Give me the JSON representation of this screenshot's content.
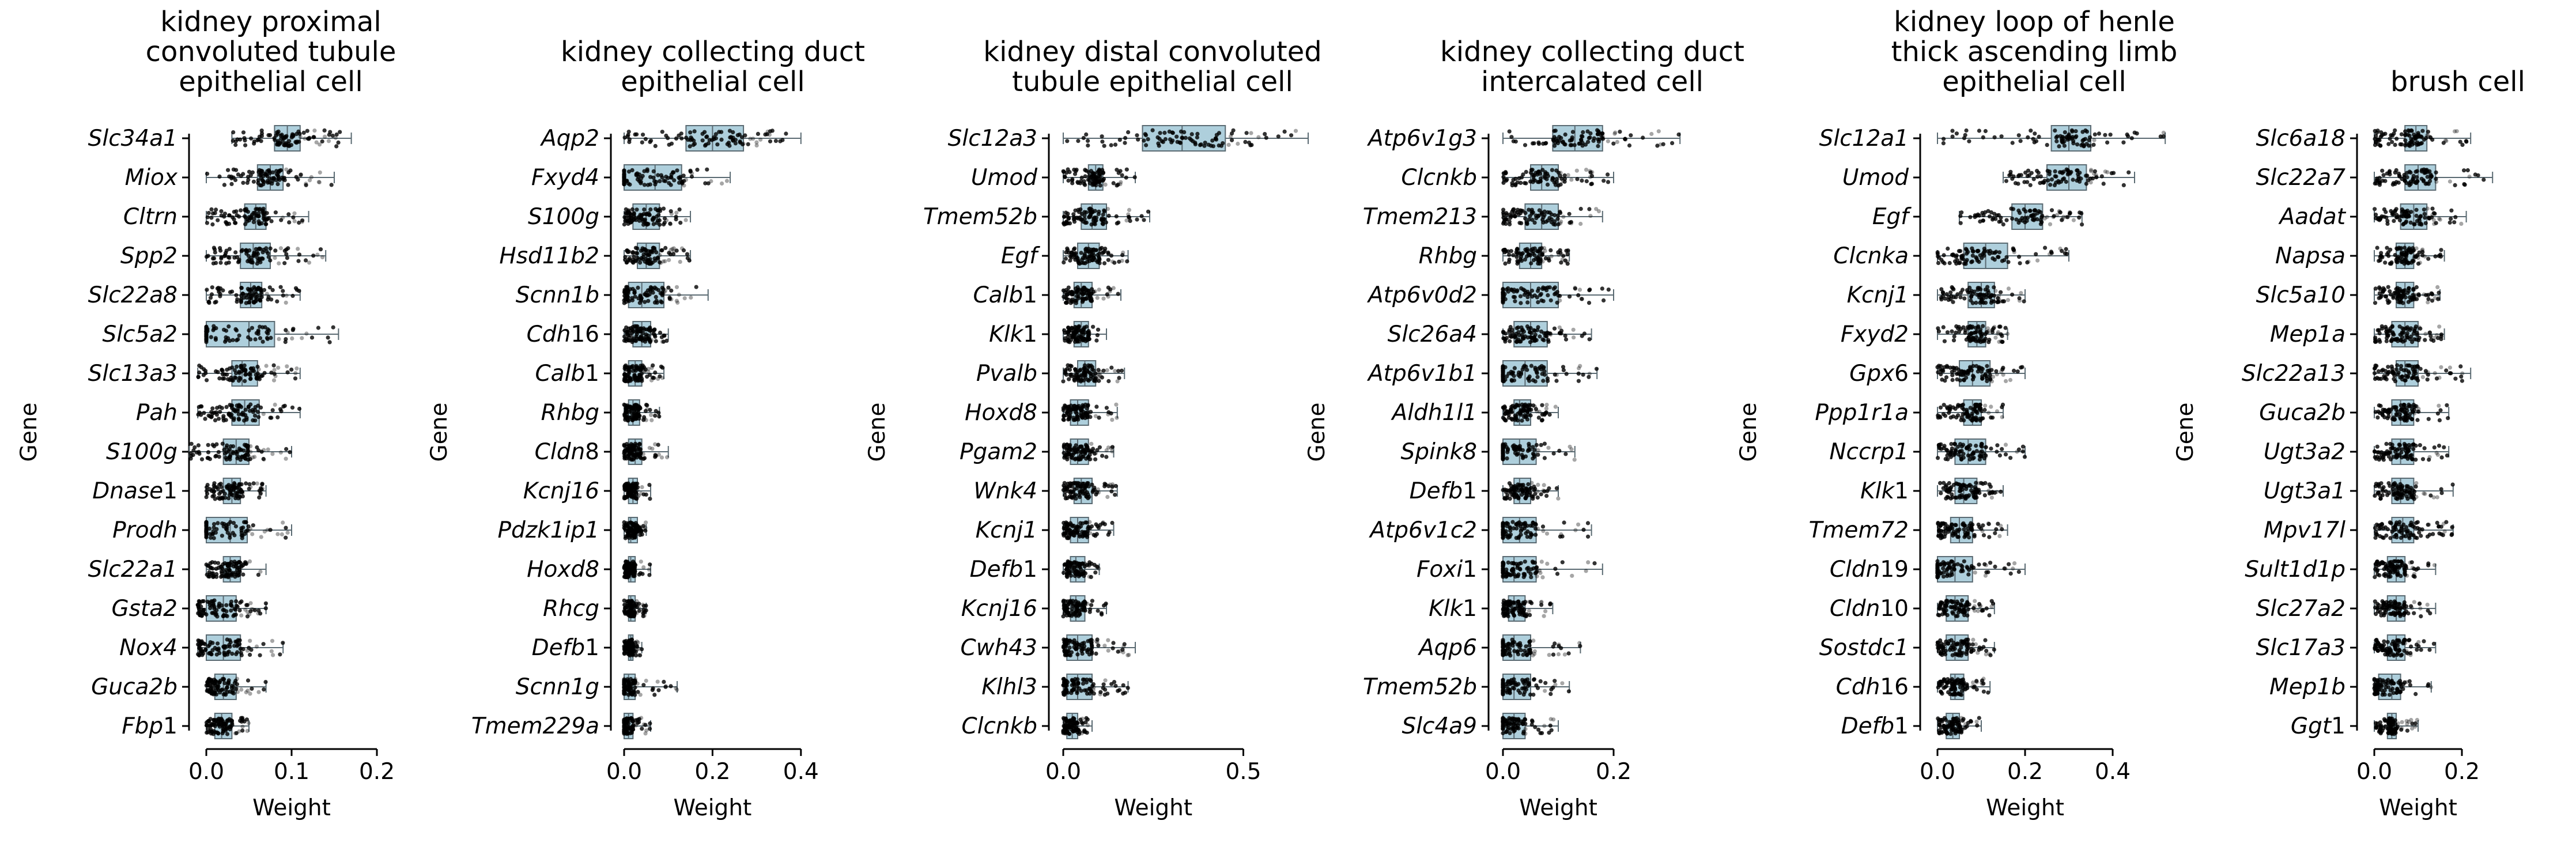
{
  "figure": {
    "y_axis_label": "Gene",
    "x_axis_label": "Weight"
  },
  "chart_data": [
    {
      "type": "box",
      "title": "kidney proximal convoluted tubule epithelial cell",
      "xlabel": "Weight",
      "ylabel": "Gene",
      "xlim": [
        -0.03,
        0.2
      ],
      "xticks": [
        0.0,
        0.1,
        0.2
      ],
      "xtick_labels": [
        "0.0",
        "0.1",
        "0.2"
      ],
      "grid": false,
      "genes": [
        "Slc34a1",
        "Miox",
        "Cltrn",
        "Spp2",
        "Slc22a8",
        "Slc5a2",
        "Slc13a3",
        "Pah",
        "S100g",
        "Dnase1",
        "Prodh",
        "Slc22a1",
        "Gsta2",
        "Nox4",
        "Guca2b",
        "Fbp1"
      ],
      "boxes": [
        {
          "q1": 0.08,
          "median": 0.095,
          "q3": 0.11,
          "whisker_low": 0.03,
          "whisker_high": 0.17
        },
        {
          "q1": 0.06,
          "median": 0.075,
          "q3": 0.09,
          "whisker_low": 0.0,
          "whisker_high": 0.15
        },
        {
          "q1": 0.045,
          "median": 0.058,
          "q3": 0.07,
          "whisker_low": 0.0,
          "whisker_high": 0.12
        },
        {
          "q1": 0.04,
          "median": 0.055,
          "q3": 0.075,
          "whisker_low": 0.0,
          "whisker_high": 0.14
        },
        {
          "q1": 0.04,
          "median": 0.052,
          "q3": 0.065,
          "whisker_low": 0.0,
          "whisker_high": 0.11
        },
        {
          "q1": 0.0,
          "median": 0.05,
          "q3": 0.08,
          "whisker_low": 0.0,
          "whisker_high": 0.155
        },
        {
          "q1": 0.03,
          "median": 0.042,
          "q3": 0.06,
          "whisker_low": -0.01,
          "whisker_high": 0.11
        },
        {
          "q1": 0.03,
          "median": 0.045,
          "q3": 0.062,
          "whisker_low": -0.01,
          "whisker_high": 0.11
        },
        {
          "q1": 0.02,
          "median": 0.035,
          "q3": 0.05,
          "whisker_low": -0.02,
          "whisker_high": 0.1
        },
        {
          "q1": 0.02,
          "median": 0.03,
          "q3": 0.04,
          "whisker_low": 0.0,
          "whisker_high": 0.07
        },
        {
          "q1": 0.0,
          "median": 0.028,
          "q3": 0.048,
          "whisker_low": 0.0,
          "whisker_high": 0.1
        },
        {
          "q1": 0.02,
          "median": 0.028,
          "q3": 0.04,
          "whisker_low": 0.0,
          "whisker_high": 0.07
        },
        {
          "q1": 0.0,
          "median": 0.02,
          "q3": 0.035,
          "whisker_low": -0.01,
          "whisker_high": 0.07
        },
        {
          "q1": 0.0,
          "median": 0.02,
          "q3": 0.04,
          "whisker_low": -0.01,
          "whisker_high": 0.09
        },
        {
          "q1": 0.01,
          "median": 0.02,
          "q3": 0.035,
          "whisker_low": 0.0,
          "whisker_high": 0.07
        },
        {
          "q1": 0.01,
          "median": 0.018,
          "q3": 0.03,
          "whisker_low": 0.0,
          "whisker_high": 0.05
        }
      ]
    },
    {
      "type": "box",
      "title": "kidney collecting duct epithelial cell",
      "xlabel": "Weight",
      "ylabel": "Gene",
      "xlim": [
        -0.01,
        0.4
      ],
      "xticks": [
        0.0,
        0.2,
        0.4
      ],
      "xtick_labels": [
        "0.0",
        "0.2",
        "0.4"
      ],
      "grid": false,
      "genes": [
        "Aqp2",
        "Fxyd4",
        "S100g",
        "Hsd11b2",
        "Scnn1b",
        "Cdh16",
        "Calb1",
        "Rhbg",
        "Cldn8",
        "Kcnj16",
        "Pdzk1ip1",
        "Hoxd8",
        "Rhcg",
        "Defb1",
        "Scnn1g",
        "Tmem229a"
      ],
      "boxes": [
        {
          "q1": 0.14,
          "median": 0.2,
          "q3": 0.27,
          "whisker_low": 0.0,
          "whisker_high": 0.4
        },
        {
          "q1": 0.0,
          "median": 0.07,
          "q3": 0.13,
          "whisker_low": 0.0,
          "whisker_high": 0.24
        },
        {
          "q1": 0.02,
          "median": 0.05,
          "q3": 0.08,
          "whisker_low": 0.0,
          "whisker_high": 0.15
        },
        {
          "q1": 0.03,
          "median": 0.05,
          "q3": 0.08,
          "whisker_low": 0.0,
          "whisker_high": 0.15
        },
        {
          "q1": 0.01,
          "median": 0.04,
          "q3": 0.09,
          "whisker_low": 0.0,
          "whisker_high": 0.19
        },
        {
          "q1": 0.02,
          "median": 0.04,
          "q3": 0.06,
          "whisker_low": 0.0,
          "whisker_high": 0.1
        },
        {
          "q1": 0.01,
          "median": 0.025,
          "q3": 0.04,
          "whisker_low": 0.0,
          "whisker_high": 0.09
        },
        {
          "q1": 0.01,
          "median": 0.02,
          "q3": 0.035,
          "whisker_low": 0.0,
          "whisker_high": 0.08
        },
        {
          "q1": 0.01,
          "median": 0.025,
          "q3": 0.04,
          "whisker_low": 0.0,
          "whisker_high": 0.1
        },
        {
          "q1": 0.01,
          "median": 0.02,
          "q3": 0.03,
          "whisker_low": 0.0,
          "whisker_high": 0.06
        },
        {
          "q1": 0.01,
          "median": 0.015,
          "q3": 0.03,
          "whisker_low": 0.0,
          "whisker_high": 0.05
        },
        {
          "q1": 0.01,
          "median": 0.015,
          "q3": 0.025,
          "whisker_low": 0.0,
          "whisker_high": 0.06
        },
        {
          "q1": 0.01,
          "median": 0.015,
          "q3": 0.025,
          "whisker_low": 0.0,
          "whisker_high": 0.05
        },
        {
          "q1": 0.01,
          "median": 0.015,
          "q3": 0.02,
          "whisker_low": 0.0,
          "whisker_high": 0.04
        },
        {
          "q1": 0.0,
          "median": 0.01,
          "q3": 0.025,
          "whisker_low": 0.0,
          "whisker_high": 0.12
        },
        {
          "q1": 0.0,
          "median": 0.01,
          "q3": 0.02,
          "whisker_low": 0.0,
          "whisker_high": 0.06
        }
      ]
    },
    {
      "type": "box",
      "title": "kidney distal convoluted tubule epithelial cell",
      "xlabel": "Weight",
      "ylabel": "Gene",
      "xlim": [
        -0.02,
        0.7
      ],
      "xticks": [
        0.0,
        0.5
      ],
      "xtick_labels": [
        "0.0",
        "0.5"
      ],
      "grid": false,
      "genes": [
        "Slc12a3",
        "Umod",
        "Tmem52b",
        "Egf",
        "Calb1",
        "Klk1",
        "Pvalb",
        "Hoxd8",
        "Pgam2",
        "Wnk4",
        "Kcnj1",
        "Defb1",
        "Kcnj16",
        "Cwh43",
        "Klhl3",
        "Clcnkb"
      ],
      "boxes": [
        {
          "q1": 0.22,
          "median": 0.33,
          "q3": 0.45,
          "whisker_low": 0.0,
          "whisker_high": 0.68
        },
        {
          "q1": 0.07,
          "median": 0.09,
          "q3": 0.11,
          "whisker_low": 0.0,
          "whisker_high": 0.2
        },
        {
          "q1": 0.05,
          "median": 0.08,
          "q3": 0.12,
          "whisker_low": 0.0,
          "whisker_high": 0.24
        },
        {
          "q1": 0.04,
          "median": 0.07,
          "q3": 0.1,
          "whisker_low": 0.0,
          "whisker_high": 0.18
        },
        {
          "q1": 0.03,
          "median": 0.05,
          "q3": 0.08,
          "whisker_low": 0.0,
          "whisker_high": 0.16
        },
        {
          "q1": 0.03,
          "median": 0.05,
          "q3": 0.07,
          "whisker_low": 0.0,
          "whisker_high": 0.12
        },
        {
          "q1": 0.04,
          "median": 0.06,
          "q3": 0.09,
          "whisker_low": 0.0,
          "whisker_high": 0.17
        },
        {
          "q1": 0.02,
          "median": 0.04,
          "q3": 0.07,
          "whisker_low": 0.0,
          "whisker_high": 0.15
        },
        {
          "q1": 0.02,
          "median": 0.04,
          "q3": 0.07,
          "whisker_low": 0.0,
          "whisker_high": 0.14
        },
        {
          "q1": 0.03,
          "median": 0.05,
          "q3": 0.08,
          "whisker_low": 0.0,
          "whisker_high": 0.15
        },
        {
          "q1": 0.02,
          "median": 0.04,
          "q3": 0.07,
          "whisker_low": 0.0,
          "whisker_high": 0.14
        },
        {
          "q1": 0.02,
          "median": 0.035,
          "q3": 0.06,
          "whisker_low": 0.0,
          "whisker_high": 0.1
        },
        {
          "q1": 0.02,
          "median": 0.035,
          "q3": 0.06,
          "whisker_low": 0.0,
          "whisker_high": 0.12
        },
        {
          "q1": 0.01,
          "median": 0.04,
          "q3": 0.08,
          "whisker_low": 0.0,
          "whisker_high": 0.2
        },
        {
          "q1": 0.01,
          "median": 0.04,
          "q3": 0.08,
          "whisker_low": 0.0,
          "whisker_high": 0.18
        },
        {
          "q1": 0.01,
          "median": 0.025,
          "q3": 0.04,
          "whisker_low": 0.0,
          "whisker_high": 0.08
        }
      ]
    },
    {
      "type": "box",
      "title": "kidney collecting duct intercalated cell",
      "xlabel": "Weight",
      "ylabel": "Gene",
      "xlim": [
        -0.01,
        0.35
      ],
      "xticks": [
        0.0,
        0.2
      ],
      "xtick_labels": [
        "0.0",
        "0.2"
      ],
      "grid": false,
      "genes": [
        "Atp6v1g3",
        "Clcnkb",
        "Tmem213",
        "Rhbg",
        "Atp6v0d2",
        "Slc26a4",
        "Atp6v1b1",
        "Aldh1l1",
        "Spink8",
        "Defb1",
        "Atp6v1c2",
        "Foxi1",
        "Klk1",
        "Aqp6",
        "Tmem52b",
        "Slc4a9"
      ],
      "boxes": [
        {
          "q1": 0.09,
          "median": 0.13,
          "q3": 0.18,
          "whisker_low": 0.0,
          "whisker_high": 0.32
        },
        {
          "q1": 0.05,
          "median": 0.07,
          "q3": 0.1,
          "whisker_low": 0.0,
          "whisker_high": 0.2
        },
        {
          "q1": 0.04,
          "median": 0.07,
          "q3": 0.1,
          "whisker_low": 0.0,
          "whisker_high": 0.18
        },
        {
          "q1": 0.03,
          "median": 0.05,
          "q3": 0.07,
          "whisker_low": 0.0,
          "whisker_high": 0.12
        },
        {
          "q1": 0.0,
          "median": 0.05,
          "q3": 0.1,
          "whisker_low": 0.0,
          "whisker_high": 0.2
        },
        {
          "q1": 0.02,
          "median": 0.05,
          "q3": 0.08,
          "whisker_low": 0.0,
          "whisker_high": 0.16
        },
        {
          "q1": 0.0,
          "median": 0.04,
          "q3": 0.08,
          "whisker_low": 0.0,
          "whisker_high": 0.17
        },
        {
          "q1": 0.02,
          "median": 0.03,
          "q3": 0.05,
          "whisker_low": 0.0,
          "whisker_high": 0.1
        },
        {
          "q1": 0.0,
          "median": 0.03,
          "q3": 0.06,
          "whisker_low": 0.0,
          "whisker_high": 0.13
        },
        {
          "q1": 0.02,
          "median": 0.03,
          "q3": 0.05,
          "whisker_low": 0.0,
          "whisker_high": 0.1
        },
        {
          "q1": 0.0,
          "median": 0.03,
          "q3": 0.06,
          "whisker_low": 0.0,
          "whisker_high": 0.16
        },
        {
          "q1": 0.0,
          "median": 0.02,
          "q3": 0.06,
          "whisker_low": 0.0,
          "whisker_high": 0.18
        },
        {
          "q1": 0.01,
          "median": 0.02,
          "q3": 0.04,
          "whisker_low": 0.0,
          "whisker_high": 0.09
        },
        {
          "q1": 0.0,
          "median": 0.02,
          "q3": 0.05,
          "whisker_low": 0.0,
          "whisker_high": 0.14
        },
        {
          "q1": 0.0,
          "median": 0.02,
          "q3": 0.05,
          "whisker_low": 0.0,
          "whisker_high": 0.12
        },
        {
          "q1": 0.0,
          "median": 0.02,
          "q3": 0.04,
          "whisker_low": 0.0,
          "whisker_high": 0.1
        }
      ]
    },
    {
      "type": "box",
      "title": "kidney loop of henle thick ascending limb epithelial cell",
      "xlabel": "Weight",
      "ylabel": "Gene",
      "xlim": [
        -0.02,
        0.55
      ],
      "xticks": [
        0.0,
        0.2,
        0.4
      ],
      "xtick_labels": [
        "0.0",
        "0.2",
        "0.4"
      ],
      "grid": false,
      "genes": [
        "Slc12a1",
        "Umod",
        "Egf",
        "Clcnka",
        "Kcnj1",
        "Fxyd2",
        "Gpx6",
        "Ppp1r1a",
        "Nccrp1",
        "Klk1",
        "Tmem72",
        "Cldn19",
        "Cldn10",
        "Sostdc1",
        "Cdh16",
        "Defb1"
      ],
      "boxes": [
        {
          "q1": 0.26,
          "median": 0.3,
          "q3": 0.35,
          "whisker_low": 0.0,
          "whisker_high": 0.52
        },
        {
          "q1": 0.25,
          "median": 0.3,
          "q3": 0.34,
          "whisker_low": 0.15,
          "whisker_high": 0.45
        },
        {
          "q1": 0.17,
          "median": 0.2,
          "q3": 0.24,
          "whisker_low": 0.05,
          "whisker_high": 0.33
        },
        {
          "q1": 0.06,
          "median": 0.11,
          "q3": 0.16,
          "whisker_low": 0.0,
          "whisker_high": 0.3
        },
        {
          "q1": 0.07,
          "median": 0.1,
          "q3": 0.13,
          "whisker_low": 0.0,
          "whisker_high": 0.2
        },
        {
          "q1": 0.07,
          "median": 0.09,
          "q3": 0.11,
          "whisker_low": 0.0,
          "whisker_high": 0.16
        },
        {
          "q1": 0.05,
          "median": 0.08,
          "q3": 0.12,
          "whisker_low": 0.0,
          "whisker_high": 0.2
        },
        {
          "q1": 0.06,
          "median": 0.08,
          "q3": 0.1,
          "whisker_low": 0.0,
          "whisker_high": 0.15
        },
        {
          "q1": 0.04,
          "median": 0.07,
          "q3": 0.11,
          "whisker_low": 0.0,
          "whisker_high": 0.2
        },
        {
          "q1": 0.04,
          "median": 0.06,
          "q3": 0.09,
          "whisker_low": 0.0,
          "whisker_high": 0.15
        },
        {
          "q1": 0.03,
          "median": 0.05,
          "q3": 0.08,
          "whisker_low": 0.0,
          "whisker_high": 0.16
        },
        {
          "q1": 0.0,
          "median": 0.04,
          "q3": 0.08,
          "whisker_low": 0.0,
          "whisker_high": 0.2
        },
        {
          "q1": 0.02,
          "median": 0.04,
          "q3": 0.07,
          "whisker_low": 0.0,
          "whisker_high": 0.13
        },
        {
          "q1": 0.02,
          "median": 0.04,
          "q3": 0.07,
          "whisker_low": 0.0,
          "whisker_high": 0.13
        },
        {
          "q1": 0.03,
          "median": 0.04,
          "q3": 0.06,
          "whisker_low": 0.0,
          "whisker_high": 0.12
        },
        {
          "q1": 0.02,
          "median": 0.035,
          "q3": 0.05,
          "whisker_low": 0.0,
          "whisker_high": 0.1
        }
      ]
    },
    {
      "type": "box",
      "title": "brush cell",
      "xlabel": "Weight",
      "ylabel": "Gene",
      "xlim": [
        -0.01,
        0.28
      ],
      "xticks": [
        0.0,
        0.2
      ],
      "xtick_labels": [
        "0.0",
        "0.2"
      ],
      "grid": false,
      "genes": [
        "Slc6a18",
        "Slc22a7",
        "Aadat",
        "Napsa",
        "Slc5a10",
        "Mep1a",
        "Slc22a13",
        "Guca2b",
        "Ugt3a2",
        "Ugt3a1",
        "Mpv17l",
        "Sult1d1p",
        "Slc27a2",
        "Slc17a3",
        "Mep1b",
        "Ggt1"
      ],
      "boxes": [
        {
          "q1": 0.07,
          "median": 0.095,
          "q3": 0.12,
          "whisker_low": 0.0,
          "whisker_high": 0.22
        },
        {
          "q1": 0.07,
          "median": 0.1,
          "q3": 0.14,
          "whisker_low": 0.0,
          "whisker_high": 0.27
        },
        {
          "q1": 0.06,
          "median": 0.09,
          "q3": 0.12,
          "whisker_low": 0.0,
          "whisker_high": 0.21
        },
        {
          "q1": 0.05,
          "median": 0.07,
          "q3": 0.09,
          "whisker_low": 0.0,
          "whisker_high": 0.16
        },
        {
          "q1": 0.05,
          "median": 0.07,
          "q3": 0.09,
          "whisker_low": 0.0,
          "whisker_high": 0.15
        },
        {
          "q1": 0.04,
          "median": 0.07,
          "q3": 0.1,
          "whisker_low": 0.0,
          "whisker_high": 0.16
        },
        {
          "q1": 0.05,
          "median": 0.07,
          "q3": 0.1,
          "whisker_low": 0.0,
          "whisker_high": 0.22
        },
        {
          "q1": 0.04,
          "median": 0.06,
          "q3": 0.09,
          "whisker_low": 0.0,
          "whisker_high": 0.17
        },
        {
          "q1": 0.04,
          "median": 0.06,
          "q3": 0.09,
          "whisker_low": 0.0,
          "whisker_high": 0.17
        },
        {
          "q1": 0.04,
          "median": 0.06,
          "q3": 0.09,
          "whisker_low": 0.0,
          "whisker_high": 0.18
        },
        {
          "q1": 0.04,
          "median": 0.065,
          "q3": 0.09,
          "whisker_low": 0.0,
          "whisker_high": 0.18
        },
        {
          "q1": 0.03,
          "median": 0.05,
          "q3": 0.07,
          "whisker_low": 0.0,
          "whisker_high": 0.14
        },
        {
          "q1": 0.03,
          "median": 0.05,
          "q3": 0.07,
          "whisker_low": 0.0,
          "whisker_high": 0.14
        },
        {
          "q1": 0.03,
          "median": 0.05,
          "q3": 0.07,
          "whisker_low": 0.0,
          "whisker_high": 0.14
        },
        {
          "q1": 0.01,
          "median": 0.04,
          "q3": 0.06,
          "whisker_low": 0.0,
          "whisker_high": 0.13
        },
        {
          "q1": 0.03,
          "median": 0.04,
          "q3": 0.05,
          "whisker_low": 0.0,
          "whisker_high": 0.1
        }
      ]
    }
  ],
  "colors": {
    "box_fill": "#aecfdc",
    "box_edge": "#5a6a72",
    "points": "#000000",
    "axis": "#000000"
  }
}
